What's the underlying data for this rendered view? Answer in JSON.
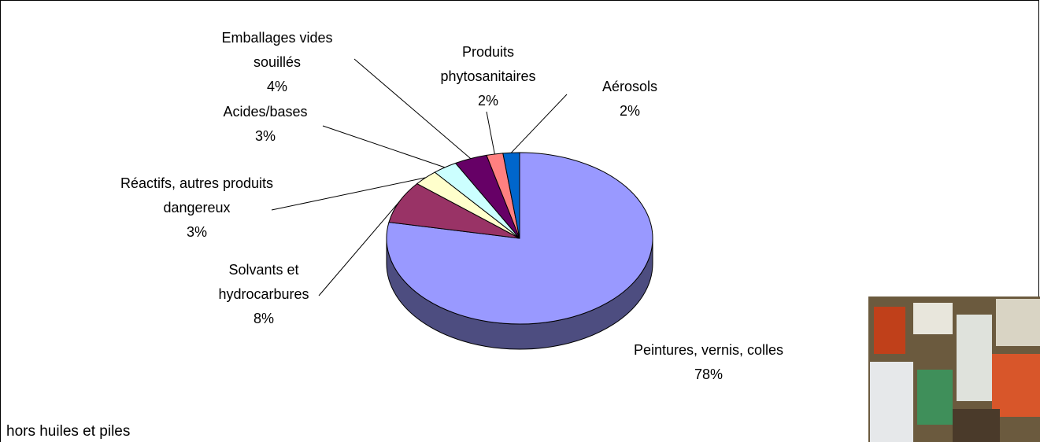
{
  "chart_data": {
    "type": "pie",
    "categories": [
      "Peintures, vernis, colles",
      "Solvants et hydrocarbures",
      "Réactifs, autres produits dangereux",
      "Acides/bases",
      "Emballages vides souillés",
      "Produits phytosanitaires",
      "Aérosols"
    ],
    "values": [
      78,
      8,
      3,
      3,
      4,
      2,
      2
    ],
    "value_labels": [
      "78%",
      "8%",
      "3%",
      "3%",
      "4%",
      "2%",
      "2%"
    ],
    "colors": [
      "#9999ff",
      "#993366",
      "#ffffcc",
      "#ccffff",
      "#660066",
      "#ff8080",
      "#0066cc"
    ],
    "annotation": "hors huiles et piles"
  }
}
